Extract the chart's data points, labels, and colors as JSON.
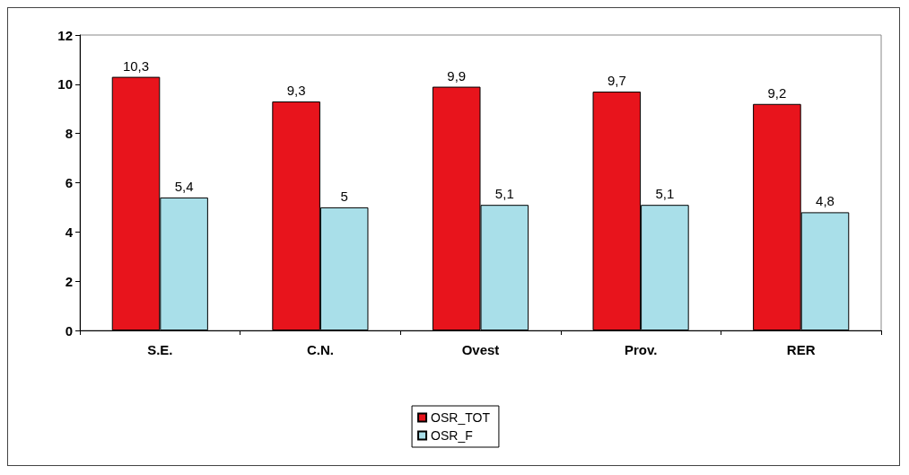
{
  "chart_data": {
    "type": "bar",
    "categories": [
      "S.E.",
      "C.N.",
      "Ovest",
      "Prov.",
      "RER"
    ],
    "series": [
      {
        "name": "OSR_TOT",
        "color": "#e8141c",
        "values": [
          10.3,
          9.3,
          9.9,
          9.7,
          9.2
        ],
        "value_labels": [
          "10,3",
          "9,3",
          "9,9",
          "9,7",
          "9,2"
        ]
      },
      {
        "name": "OSR_F",
        "color": "#a9dfe9",
        "values": [
          5.4,
          5,
          5.1,
          5.1,
          4.8
        ],
        "value_labels": [
          "5,4",
          "5",
          "5,1",
          "5,1",
          "4,8"
        ]
      }
    ],
    "ylim": [
      0,
      12
    ],
    "yticks": [
      0,
      2,
      4,
      6,
      8,
      10,
      12
    ],
    "grid": false,
    "legend": "bottom"
  }
}
